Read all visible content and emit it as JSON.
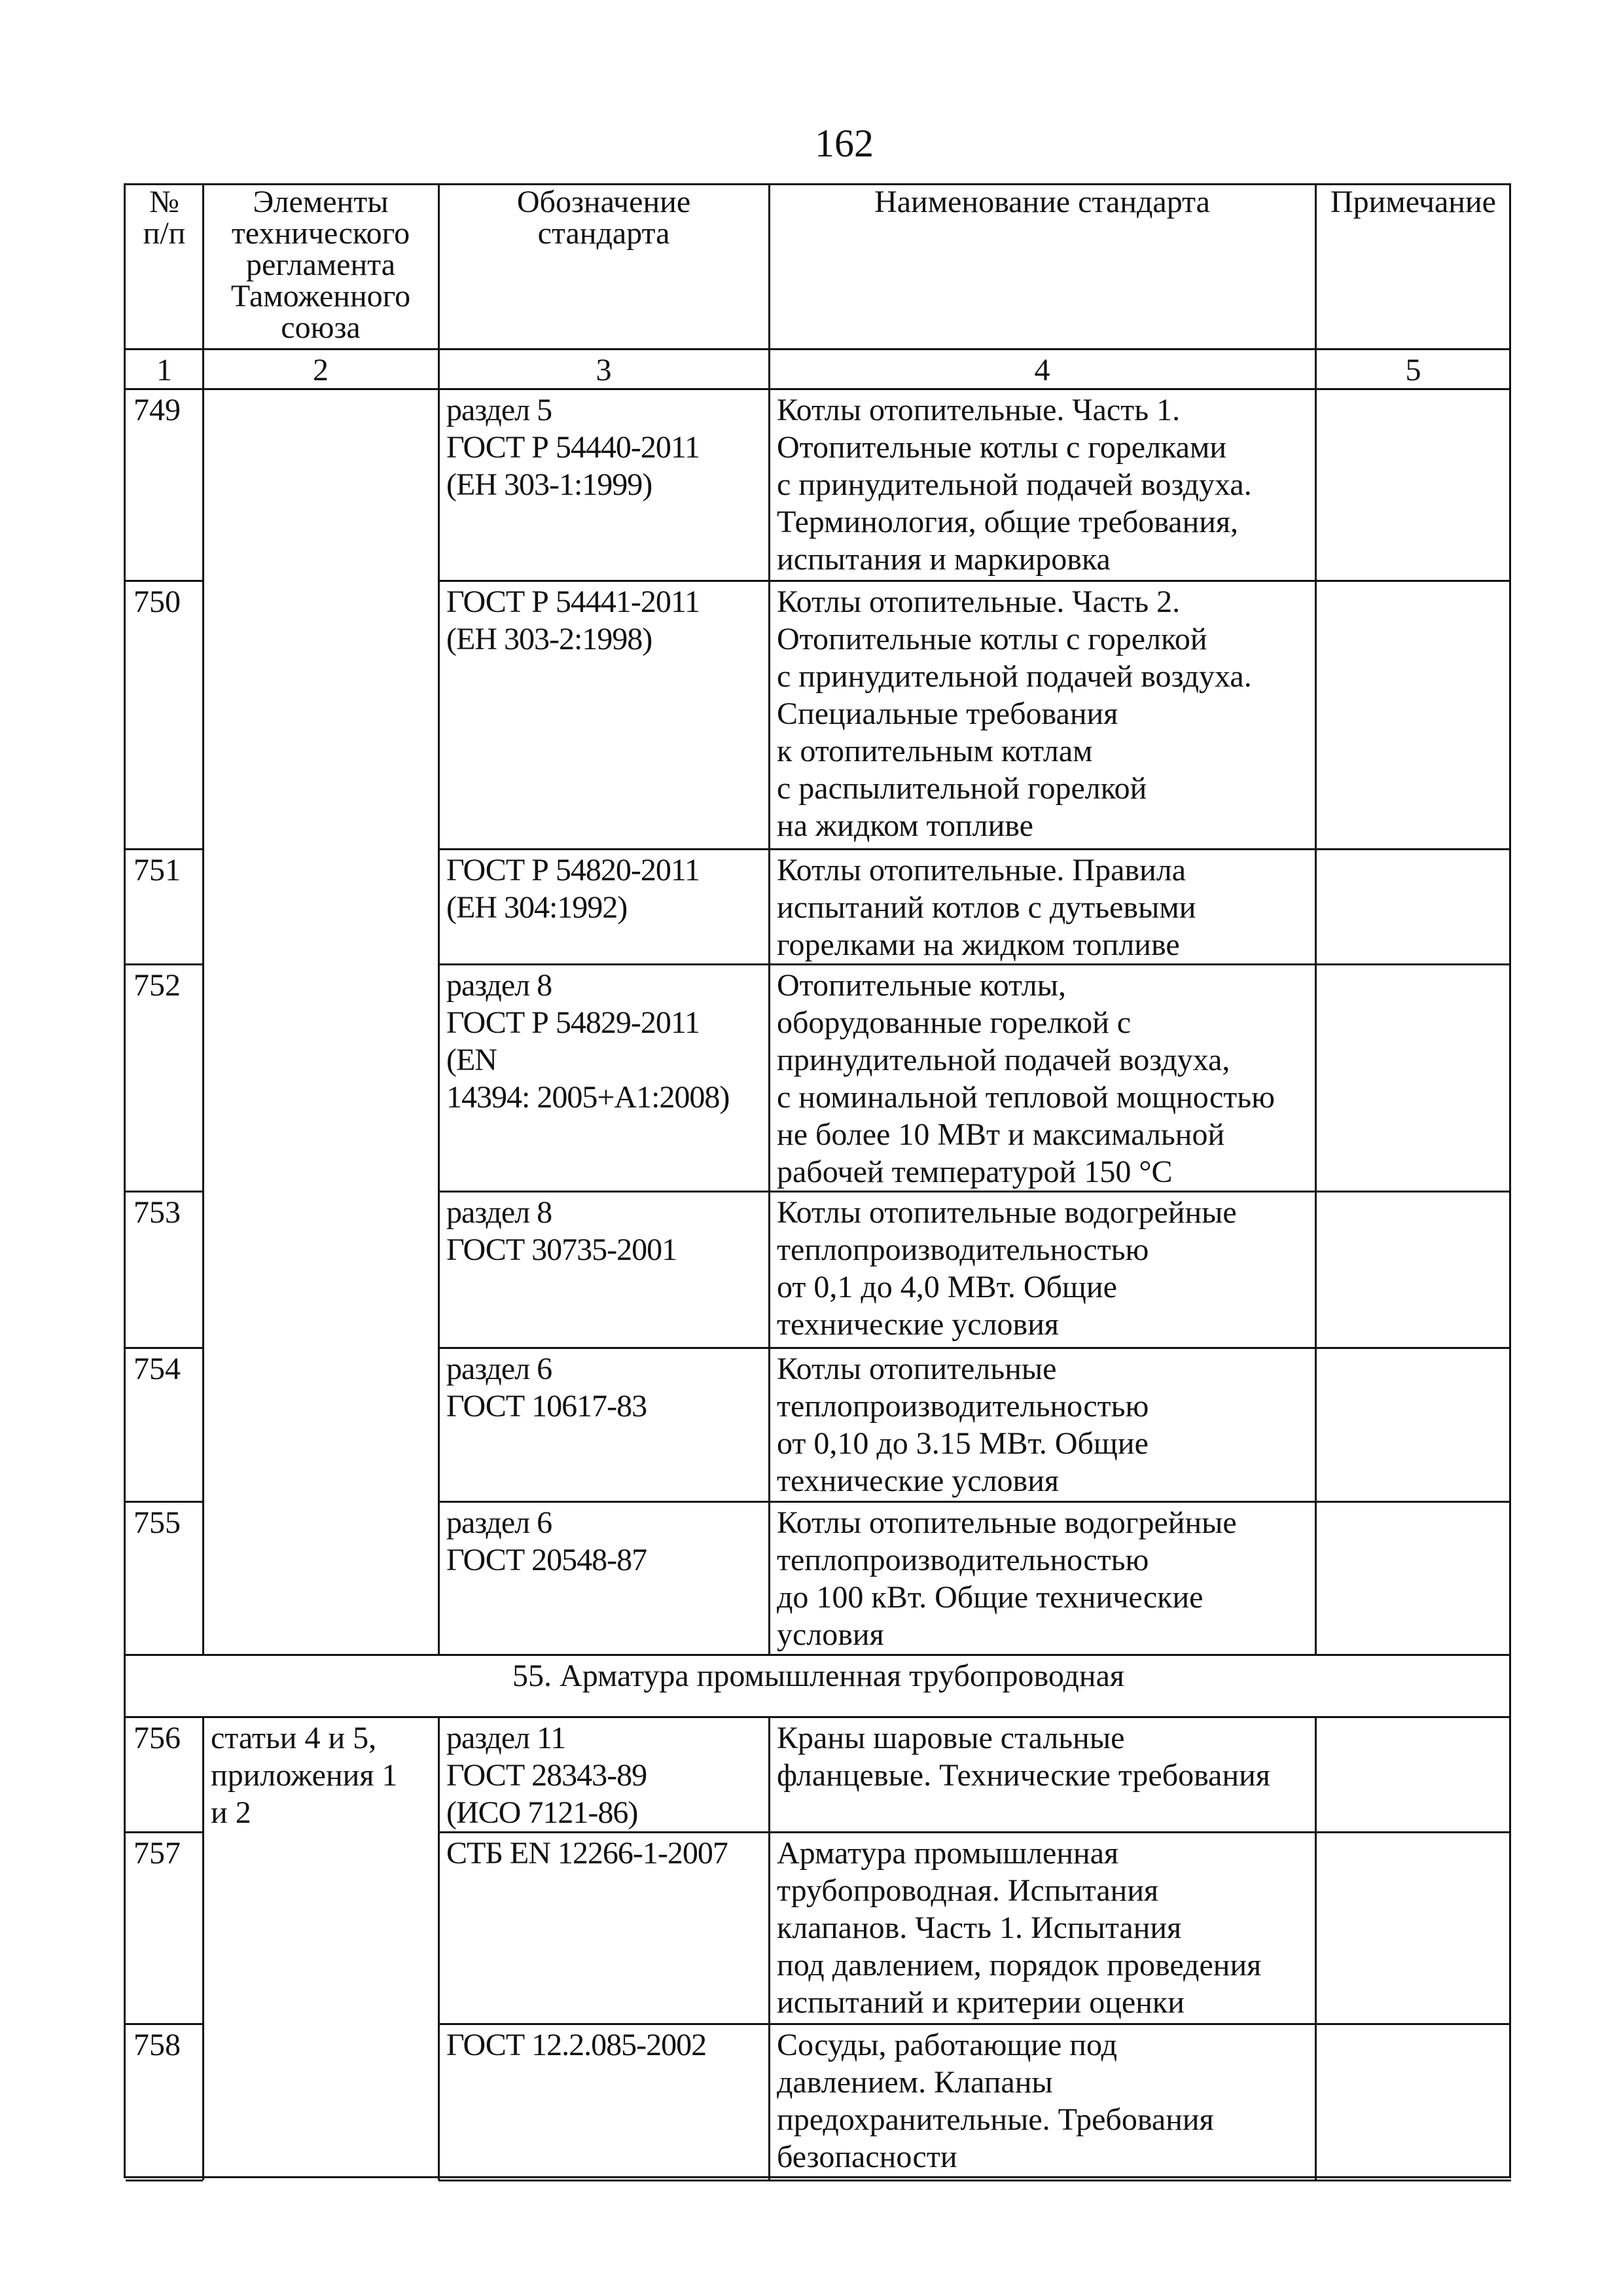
{
  "page_number": "162",
  "header": {
    "columns": [
      "№\nп/п",
      "Элементы\nтехнического\nрегламента\nТаможенного\nсоюза",
      "Обозначение\nстандарта",
      "Наименование стандарта",
      "Примечание"
    ],
    "numbers": [
      "1",
      "2",
      "3",
      "4",
      "5"
    ]
  },
  "rows": [
    {
      "num": "749",
      "element": "",
      "designation": "раздел 5\nГОСТ Р 54440-2011\n(ЕН 303-1:1999)",
      "name": "Котлы отопительные. Часть 1.\nОтопительные котлы с горелками\nс принудительной подачей воздуха.\nТерминология, общие требования,\nиспытания и маркировка",
      "note": ""
    },
    {
      "num": "750",
      "designation": "ГОСТ Р 54441-2011\n(ЕН 303-2:1998)",
      "name": "Котлы отопительные. Часть 2.\nОтопительные котлы с горелкой\nс принудительной подачей воздуха.\nСпециальные требования\nк отопительным котлам\nс распылительной горелкой\nна жидком топливе",
      "note": ""
    },
    {
      "num": "751",
      "designation": "ГОСТ Р 54820-2011\n(ЕН 304:1992)",
      "name": "Котлы отопительные. Правила\nиспытаний котлов с дутьевыми\nгорелками на жидком топливе",
      "note": ""
    },
    {
      "num": "752",
      "designation": "раздел 8\nГОСТ Р 54829-2011\n(EN\n14394: 2005+A1:2008)",
      "name": "Отопительные котлы,\nоборудованные горелкой с\nпринудительной подачей воздуха,\nс номинальной тепловой мощностью\nне более 10 МВт и максимальной\nрабочей температурой 150 °С",
      "note": ""
    },
    {
      "num": "753",
      "designation": "раздел 8\nГОСТ 30735-2001",
      "name": "Котлы отопительные водогрейные\nтеплопроизводительностью\nот 0,1 до 4,0 МВт. Общие\nтехнические условия",
      "note": ""
    },
    {
      "num": "754",
      "designation": "раздел 6\nГОСТ 10617-83",
      "name": "Котлы отопительные\nтеплопроизводительностью\nот 0,10 до 3.15 МВт. Общие\nтехнические условия",
      "note": ""
    },
    {
      "num": "755",
      "designation": "раздел 6\nГОСТ 20548-87",
      "name": "Котлы отопительные водогрейные\nтеплопроизводительностью\nдо 100 кВт. Общие технические\nусловия",
      "note": ""
    },
    {
      "section": "55. Арматура промышленная трубопроводная"
    },
    {
      "num": "756",
      "element": "статьи 4 и 5,\nприложения 1\nи 2",
      "designation": "раздел 11\nГОСТ 28343-89\n(ИСО 7121-86)",
      "name": "Краны шаровые стальные\nфланцевые. Технические требования",
      "note": ""
    },
    {
      "num": "757",
      "designation": "СТБ EN 12266-1-2007",
      "name": "Арматура промышленная\nтрубопроводная. Испытания\nклапанов. Часть 1. Испытания\nпод давлением, порядок проведения\nиспытаний и критерии оценки",
      "note": ""
    },
    {
      "num": "758",
      "designation": "ГОСТ 12.2.085-2002",
      "name": "Сосуды, работающие под\nдавлением. Клапаны\nпредохранительные. Требования\nбезопасности",
      "note": ""
    }
  ]
}
